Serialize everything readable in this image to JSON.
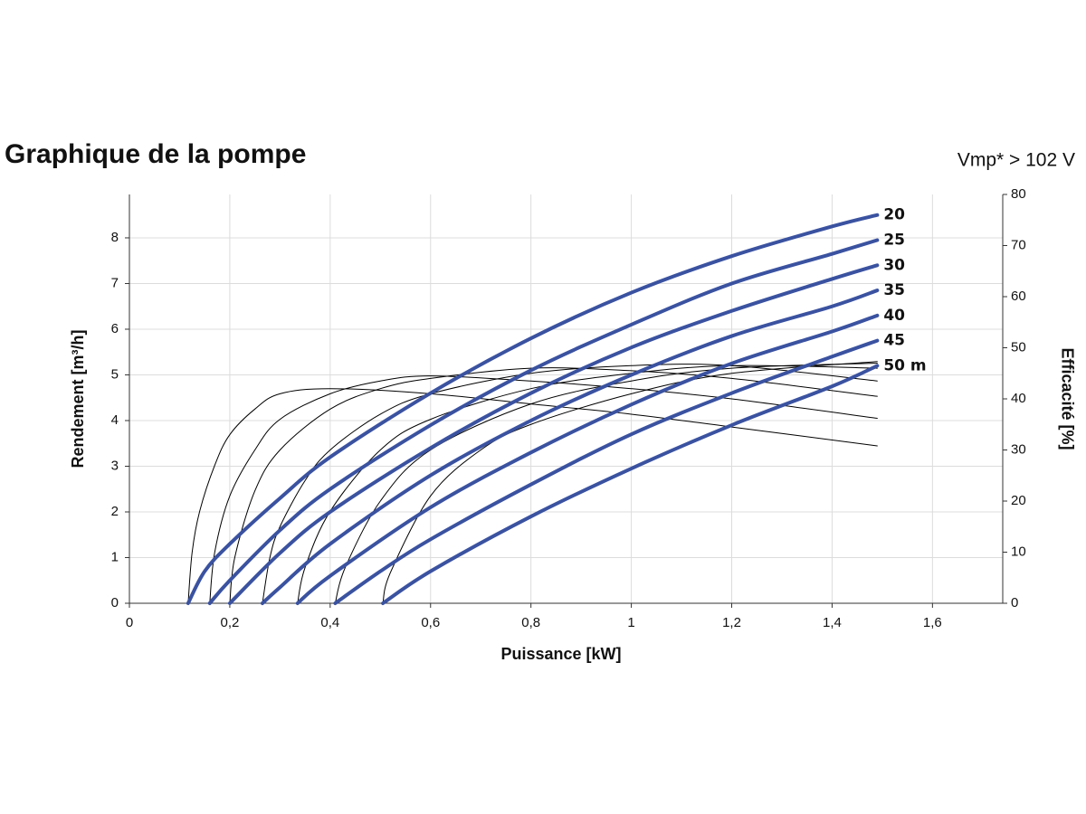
{
  "chart_data": {
    "type": "line",
    "title": "Graphique de la pompe",
    "annotation": "Vmp* > 102 V",
    "xlabel": "Puissance [kW]",
    "ylabel": "Rendement [m³/h]",
    "y2label": "Efficacité [%]",
    "xlim": [
      0,
      1.74
    ],
    "ylim": [
      0,
      8.95
    ],
    "y2lim": [
      0,
      80
    ],
    "xticks": [
      0,
      {
        "value": 0.2,
        "label": "0,2"
      },
      {
        "value": 0.4,
        "label": "0,4"
      },
      {
        "value": 0.6,
        "label": "0,6"
      },
      {
        "value": 0.8,
        "label": "0,8"
      },
      1,
      {
        "value": 1.2,
        "label": "1,2"
      },
      {
        "value": 1.4,
        "label": "1,4"
      },
      {
        "value": 1.6,
        "label": "1,6"
      }
    ],
    "yticks": [
      0,
      1,
      2,
      3,
      4,
      5,
      6,
      7,
      8
    ],
    "y2ticks": [
      0,
      10,
      20,
      30,
      40,
      50,
      60,
      70,
      80
    ],
    "grid": true,
    "series": [
      {
        "name": "20",
        "color": "#3a52a0",
        "x": [
          0.117,
          0.15,
          0.2,
          0.3,
          0.4,
          0.6,
          0.8,
          1.0,
          1.2,
          1.4,
          1.49
        ],
        "values": [
          0,
          0.7,
          1.3,
          2.3,
          3.2,
          4.6,
          5.8,
          6.8,
          7.6,
          8.25,
          8.5
        ]
      },
      {
        "name": "25",
        "color": "#3a52a0",
        "x": [
          0.16,
          0.2,
          0.3,
          0.4,
          0.6,
          0.8,
          1.0,
          1.2,
          1.4,
          1.49
        ],
        "values": [
          0,
          0.5,
          1.6,
          2.5,
          3.9,
          5.1,
          6.1,
          7.0,
          7.65,
          7.95
        ]
      },
      {
        "name": "30",
        "color": "#3a52a0",
        "x": [
          0.2,
          0.3,
          0.4,
          0.6,
          0.8,
          1.0,
          1.2,
          1.4,
          1.49
        ],
        "values": [
          0,
          1.1,
          2.0,
          3.4,
          4.6,
          5.6,
          6.4,
          7.1,
          7.4
        ]
      },
      {
        "name": "35",
        "color": "#3a52a0",
        "x": [
          0.265,
          0.3,
          0.4,
          0.6,
          0.8,
          1.0,
          1.2,
          1.4,
          1.49
        ],
        "values": [
          0,
          0.35,
          1.3,
          2.8,
          4.0,
          5.0,
          5.85,
          6.5,
          6.85
        ]
      },
      {
        "name": "40",
        "color": "#3a52a0",
        "x": [
          0.335,
          0.4,
          0.6,
          0.8,
          1.0,
          1.2,
          1.4,
          1.49
        ],
        "values": [
          0,
          0.6,
          2.1,
          3.3,
          4.35,
          5.25,
          5.95,
          6.3
        ]
      },
      {
        "name": "45",
        "color": "#3a52a0",
        "x": [
          0.41,
          0.5,
          0.6,
          0.8,
          1.0,
          1.2,
          1.4,
          1.49
        ],
        "values": [
          0,
          0.7,
          1.4,
          2.6,
          3.7,
          4.6,
          5.4,
          5.75
        ]
      },
      {
        "name": "50 m",
        "color": "#3a52a0",
        "x": [
          0.505,
          0.6,
          0.8,
          1.0,
          1.2,
          1.4,
          1.49
        ],
        "values": [
          0,
          0.7,
          1.9,
          2.95,
          3.9,
          4.75,
          5.2
        ]
      },
      {
        "axis": "y2",
        "color": "#000000",
        "x": [
          0.117,
          0.125,
          0.14,
          0.17,
          0.2,
          0.25,
          0.3,
          0.4,
          0.6,
          0.8,
          1.0,
          1.2,
          1.49
        ],
        "values": [
          0,
          10,
          18,
          27,
          33,
          38,
          41,
          42,
          41,
          39,
          37,
          34.5,
          30.8
        ]
      },
      {
        "axis": "y2",
        "color": "#000000",
        "x": [
          0.16,
          0.17,
          0.2,
          0.25,
          0.3,
          0.4,
          0.5,
          0.6,
          0.8,
          1.0,
          1.2,
          1.49
        ],
        "values": [
          0,
          10,
          21,
          30,
          36,
          41,
          43.5,
          44.5,
          43.5,
          42,
          40,
          36.2
        ]
      },
      {
        "axis": "y2",
        "color": "#000000",
        "x": [
          0.2,
          0.21,
          0.25,
          0.3,
          0.4,
          0.5,
          0.6,
          0.8,
          1.0,
          1.2,
          1.49
        ],
        "values": [
          0,
          9,
          22,
          30,
          38,
          42,
          44,
          46,
          45.5,
          44,
          40.5
        ]
      },
      {
        "axis": "y2",
        "color": "#000000",
        "x": [
          0.265,
          0.28,
          0.3,
          0.35,
          0.4,
          0.5,
          0.6,
          0.8,
          1.0,
          1.2,
          1.49
        ],
        "values": [
          0,
          9,
          15,
          24,
          30,
          37,
          41,
          45,
          46.5,
          46.5,
          43.5
        ]
      },
      {
        "axis": "y2",
        "color": "#000000",
        "x": [
          0.335,
          0.35,
          0.4,
          0.5,
          0.6,
          0.8,
          1.0,
          1.2,
          1.49
        ],
        "values": [
          0,
          7,
          18,
          30,
          36,
          42,
          45,
          46.5,
          46
        ]
      },
      {
        "axis": "y2",
        "color": "#000000",
        "x": [
          0.41,
          0.43,
          0.5,
          0.6,
          0.8,
          1.0,
          1.2,
          1.49
        ],
        "values": [
          0,
          7,
          20,
          30,
          39,
          43.5,
          46,
          47
        ]
      },
      {
        "axis": "y2",
        "color": "#000000",
        "x": [
          0.505,
          0.52,
          0.6,
          0.7,
          0.8,
          1.0,
          1.2,
          1.49
        ],
        "values": [
          0,
          6,
          21,
          30,
          35,
          41,
          45,
          47.3
        ]
      }
    ]
  }
}
